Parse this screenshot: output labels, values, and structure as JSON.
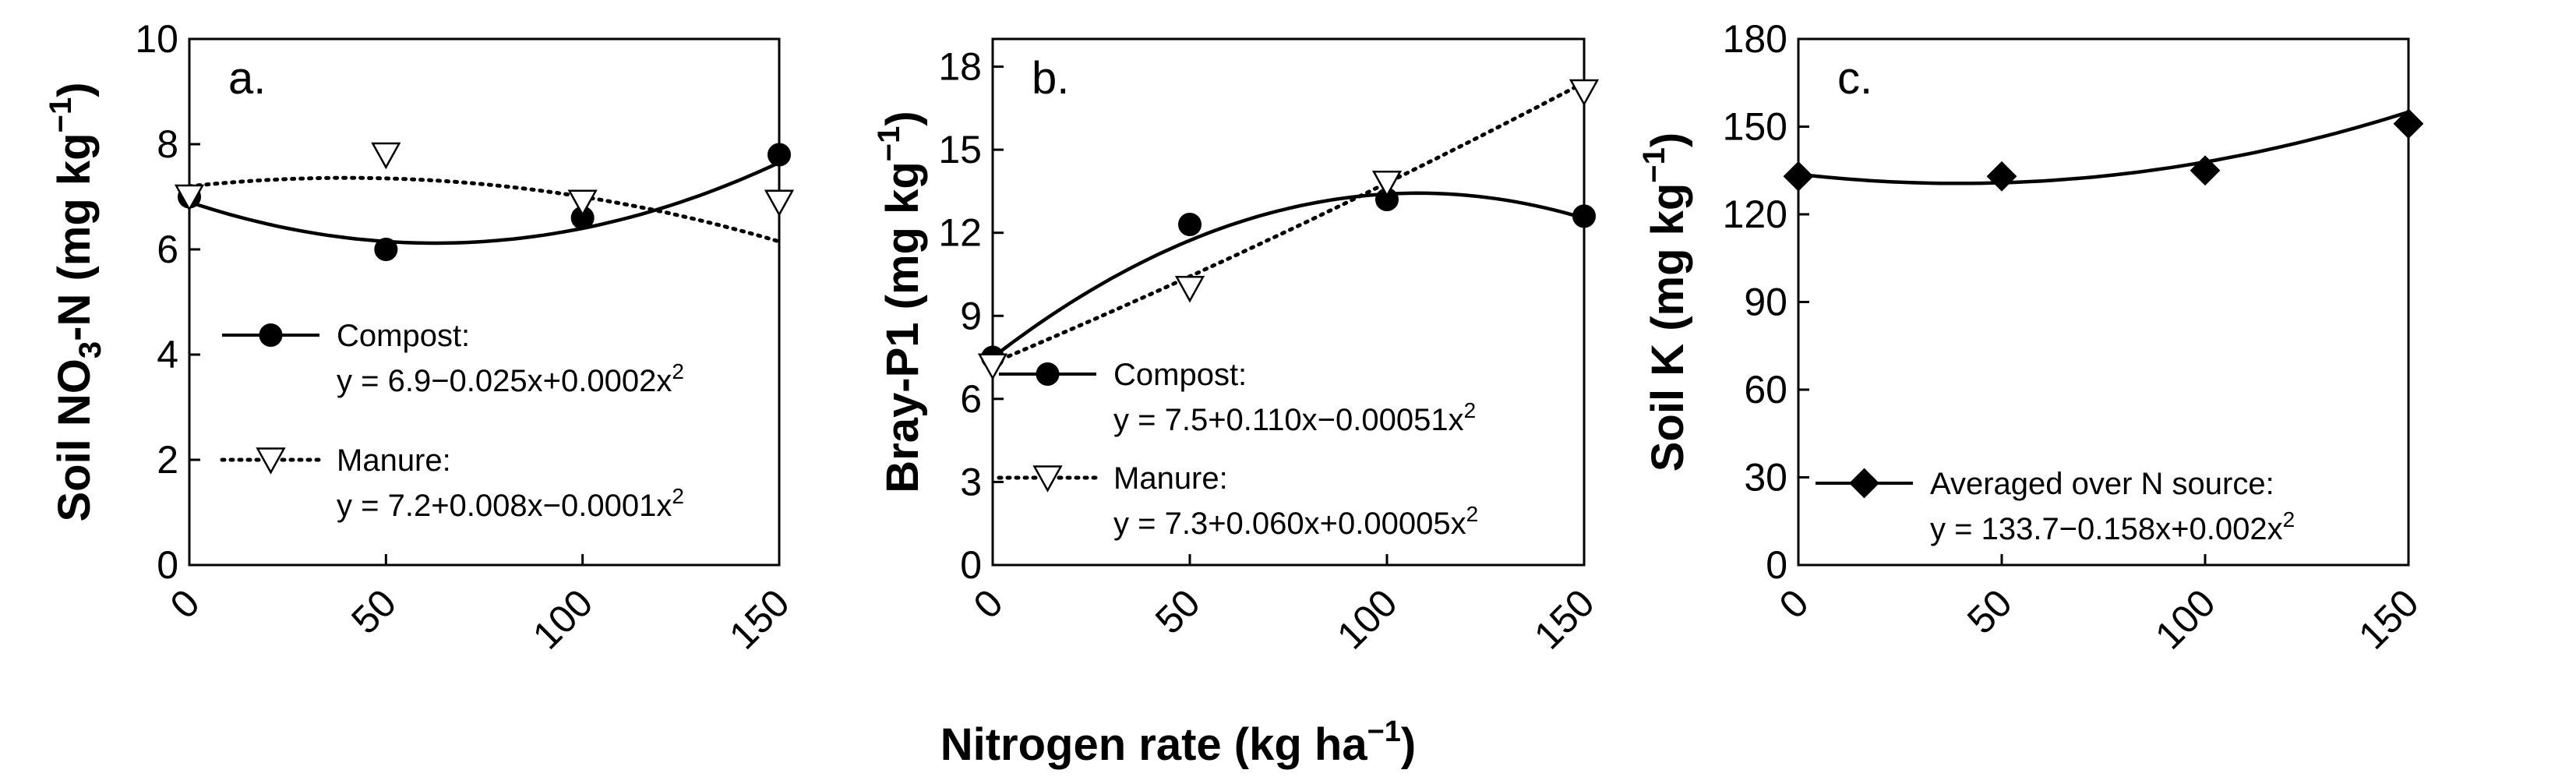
{
  "figure": {
    "shared_xlabel": "Nitrogen rate (kg ha",
    "shared_xlabel_sup": "−1",
    "shared_xlabel_close": ")"
  },
  "chart_data": [
    {
      "type": "line",
      "panel_label": "a.",
      "ylabel_parts": [
        "Soil NO",
        "3",
        "-N (mg kg",
        "−1",
        ")"
      ],
      "x": [
        0,
        50,
        100,
        150
      ],
      "xticks": [
        "0",
        "50",
        "100",
        "150"
      ],
      "xlim": [
        0,
        150
      ],
      "ylim": [
        0,
        10
      ],
      "yticks": [
        "0",
        "2",
        "4",
        "6",
        "8",
        "10"
      ],
      "yticks_values": [
        0,
        2,
        4,
        6,
        8,
        10
      ],
      "series": [
        {
          "name": "Compost:",
          "equation": "y = 6.9−0.025x+0.0002x",
          "eq_sup": "2",
          "marker": "circle",
          "line": "solid",
          "values": [
            7.0,
            6.0,
            6.6,
            7.8
          ],
          "fit": [
            6.9,
            -0.025,
            0.0002
          ]
        },
        {
          "name": "Manure:",
          "equation": "y = 7.2+0.008x−0.0001x",
          "eq_sup": "2",
          "marker": "triangle-down",
          "line": "dotted",
          "values": [
            7.0,
            7.8,
            6.9,
            6.9
          ],
          "fit": [
            7.2,
            0.008,
            -0.0001
          ]
        }
      ]
    },
    {
      "type": "line",
      "panel_label": "b.",
      "ylabel_parts": [
        "Bray-P1 (mg kg",
        "−1",
        ")"
      ],
      "x": [
        0,
        50,
        100,
        150
      ],
      "xticks": [
        "0",
        "50",
        "100",
        "150"
      ],
      "xlim": [
        0,
        150
      ],
      "ylim": [
        0,
        19
      ],
      "yticks": [
        "0",
        "3",
        "6",
        "9",
        "12",
        "15",
        "18"
      ],
      "yticks_values": [
        0,
        3,
        6,
        9,
        12,
        15,
        18
      ],
      "series": [
        {
          "name": "Compost:",
          "equation": "y = 7.5+0.110x−0.00051x",
          "eq_sup": "2",
          "marker": "circle",
          "line": "solid",
          "values": [
            7.5,
            12.3,
            13.2,
            12.6
          ],
          "fit": [
            7.5,
            0.11,
            -0.00051
          ]
        },
        {
          "name": "Manure:",
          "equation": "y = 7.3+0.060x+0.00005x",
          "eq_sup": "2",
          "marker": "triangle-down",
          "line": "dotted",
          "values": [
            7.2,
            10.0,
            13.8,
            17.1
          ],
          "fit": [
            7.3,
            0.06,
            5e-05
          ]
        }
      ]
    },
    {
      "type": "line",
      "panel_label": "c.",
      "ylabel_parts": [
        "Soil K (mg kg",
        "−1",
        ")"
      ],
      "x": [
        0,
        50,
        100,
        150
      ],
      "xticks": [
        "0",
        "50",
        "100",
        "150"
      ],
      "xlim": [
        0,
        150
      ],
      "ylim": [
        0,
        180
      ],
      "yticks": [
        "0",
        "30",
        "60",
        "90",
        "120",
        "150",
        "180"
      ],
      "yticks_values": [
        0,
        30,
        60,
        90,
        120,
        150,
        180
      ],
      "series": [
        {
          "name": "Averaged over N source:",
          "equation": "y = 133.7−0.158x+0.002x",
          "eq_sup": "2",
          "marker": "diamond",
          "line": "solid",
          "values": [
            133,
            133,
            135,
            151
          ],
          "fit": [
            133.7,
            -0.158,
            0.002
          ]
        }
      ]
    }
  ]
}
